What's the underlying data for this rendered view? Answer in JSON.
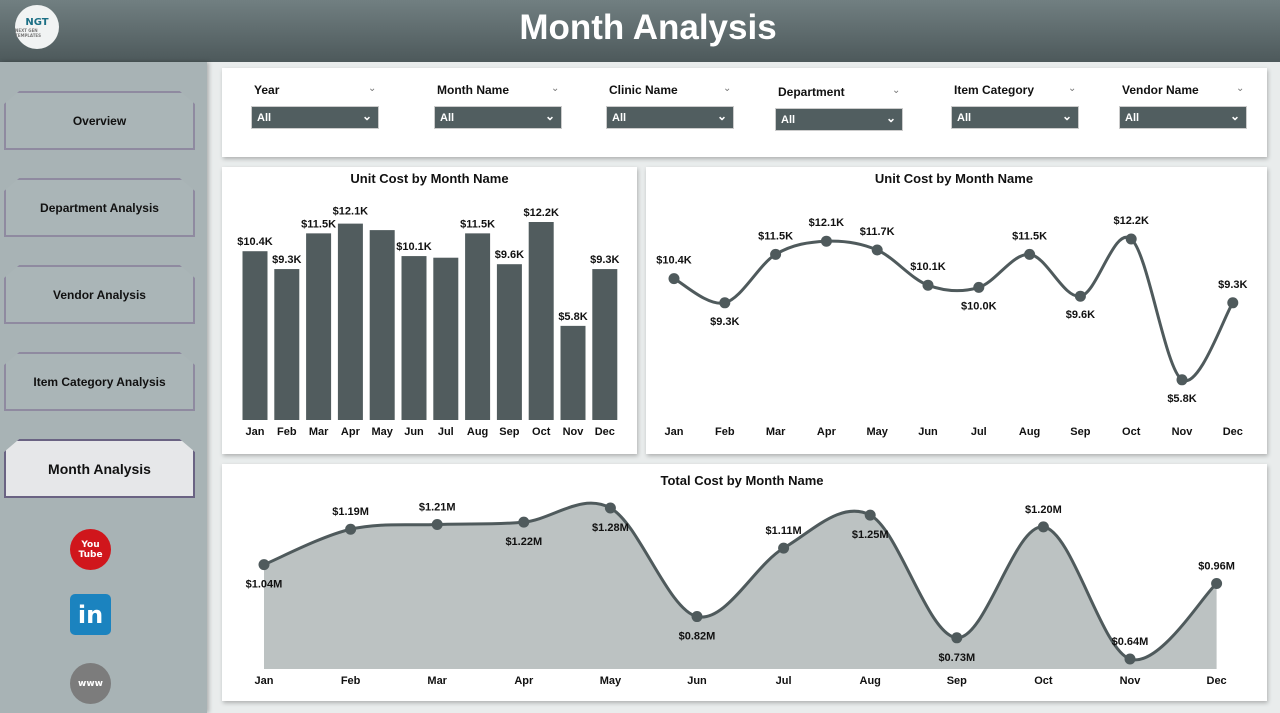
{
  "header": {
    "title": "Month Analysis",
    "logo_text": "NGT",
    "logo_subtext": "NEXT GEN TEMPLATES"
  },
  "sidebar": {
    "items": [
      {
        "label": "Overview"
      },
      {
        "label": "Department Analysis"
      },
      {
        "label": "Vendor Analysis"
      },
      {
        "label": "Item Category Analysis"
      },
      {
        "label": "Month Analysis",
        "active": true
      }
    ],
    "social": [
      {
        "icon": "youtube-icon",
        "text": "You Tube"
      },
      {
        "icon": "linkedin-icon",
        "text": "in"
      },
      {
        "icon": "globe-icon",
        "text": "www"
      }
    ]
  },
  "filters": [
    {
      "label": "Year",
      "value": "All"
    },
    {
      "label": "Month Name",
      "value": "All"
    },
    {
      "label": "Clinic Name",
      "value": "All"
    },
    {
      "label": "Department",
      "value": "All"
    },
    {
      "label": "Item Category",
      "value": "All"
    },
    {
      "label": "Vendor Name",
      "value": "All"
    }
  ],
  "colors": {
    "bar": "#515c5e",
    "line": "#4f5a5c",
    "area": "#bcc2c2"
  },
  "chart_data": [
    {
      "type": "bar",
      "title": "Unit Cost by Month Name",
      "categories": [
        "Jan",
        "Feb",
        "Mar",
        "Apr",
        "May",
        "Jun",
        "Jul",
        "Aug",
        "Sep",
        "Oct",
        "Nov",
        "Dec"
      ],
      "values": [
        10.4,
        9.3,
        11.5,
        12.1,
        11.7,
        10.1,
        10.0,
        11.5,
        9.6,
        12.2,
        5.8,
        9.3
      ],
      "unit": "$K",
      "labels": [
        "$10.4K",
        "$9.3K",
        "$11.5K",
        "$12.1K",
        null,
        "$10.1K",
        null,
        "$11.5K",
        "$9.6K",
        "$12.2K",
        "$5.8K",
        "$9.3K"
      ],
      "ylim": [
        0,
        12.2
      ]
    },
    {
      "type": "line",
      "title": "Unit Cost by Month Name",
      "categories": [
        "Jan",
        "Feb",
        "Mar",
        "Apr",
        "May",
        "Jun",
        "Jul",
        "Aug",
        "Sep",
        "Oct",
        "Nov",
        "Dec"
      ],
      "values": [
        10.4,
        9.3,
        11.5,
        12.1,
        11.7,
        10.1,
        10.0,
        11.5,
        9.6,
        12.2,
        5.8,
        9.3
      ],
      "unit": "$K",
      "labels": [
        "$10.4K",
        "$9.3K",
        "$11.5K",
        "$12.1K",
        "$11.7K",
        "$10.1K",
        "$10.0K",
        "$11.5K",
        "$9.6K",
        "$12.2K",
        "$5.8K",
        "$9.3K"
      ]
    },
    {
      "type": "area",
      "title": "Total Cost by Month Name",
      "categories": [
        "Jan",
        "Feb",
        "Mar",
        "Apr",
        "May",
        "Jun",
        "Jul",
        "Aug",
        "Sep",
        "Oct",
        "Nov",
        "Dec"
      ],
      "values": [
        1.04,
        1.19,
        1.21,
        1.22,
        1.28,
        0.82,
        1.11,
        1.25,
        0.73,
        1.2,
        0.64,
        0.96
      ],
      "unit": "$M",
      "labels": [
        "$1.04M",
        "$1.19M",
        "$1.21M",
        "$1.22M",
        "$1.28M",
        "$0.82M",
        "$1.11M",
        "$1.25M",
        "$0.73M",
        "$1.20M",
        "$0.64M",
        "$0.96M"
      ]
    }
  ]
}
